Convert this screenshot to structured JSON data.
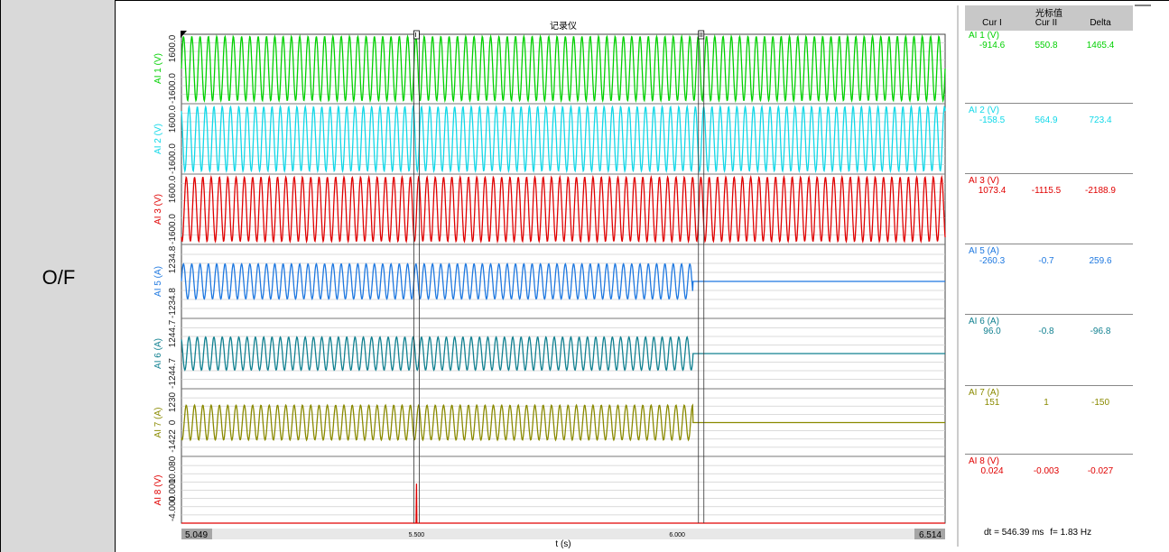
{
  "side_label": "O/F",
  "chart_data": {
    "type": "line",
    "title": "记录仪",
    "xlabel": "t (s)",
    "xlim": [
      5.049,
      6.514
    ],
    "x_ticks": [
      "5.500",
      "6.000"
    ],
    "x_start_label": "5.049",
    "x_end_label": "6.514",
    "cursor_1_t": 5.5,
    "cursor_2_t": 6.046,
    "grid": true,
    "series": [
      {
        "name": "AI 1 (V)",
        "color": "#00d000",
        "yticks": [
          "1600.0",
          "-1600.0"
        ],
        "ylim": [
          -1600,
          1600
        ],
        "amplitude_before": 1500,
        "amplitude_after": 1500,
        "cut_t": null,
        "spike_t": null
      },
      {
        "name": "AI 2 (V)",
        "color": "#10d8e8",
        "yticks": [
          "1600.0",
          "-1600.0"
        ],
        "ylim": [
          -1600,
          1600
        ],
        "amplitude_before": 1500,
        "amplitude_after": 1500,
        "cut_t": null,
        "spike_t": null
      },
      {
        "name": "AI 3 (V)",
        "color": "#e00000",
        "yticks": [
          "1600.0",
          "-1600.0"
        ],
        "ylim": [
          -1600,
          1600
        ],
        "amplitude_before": 1500,
        "amplitude_after": 1500,
        "cut_t": null,
        "spike_t": null
      },
      {
        "name": "AI 5 (A)",
        "color": "#1e78e0",
        "yticks": [
          "1234.8",
          "-1234.8"
        ],
        "ylim": [
          -1234.8,
          1234.8
        ],
        "amplitude_before": 600,
        "amplitude_after": 0,
        "cut_t": 6.03,
        "spike_t": null
      },
      {
        "name": "AI 6 (A)",
        "color": "#108090",
        "yticks": [
          "1244.7",
          "-1244.7"
        ],
        "ylim": [
          -1244.7,
          1244.7
        ],
        "amplitude_before": 600,
        "amplitude_after": 0,
        "cut_t": 6.03,
        "spike_t": null
      },
      {
        "name": "AI 7 (A)",
        "color": "#8a8a00",
        "yticks": [
          "1230",
          "0",
          "-1422"
        ],
        "ylim": [
          -1422,
          1230
        ],
        "amplitude_before": 700,
        "amplitude_after": 0,
        "cut_t": 6.03,
        "spike_t": null
      },
      {
        "name": "AI 8 (V)",
        "color": "#e00000",
        "yticks": [
          "10.080",
          "0.000",
          "-4.000"
        ],
        "ylim": [
          -4.0,
          10.08
        ],
        "amplitude_before": 0,
        "amplitude_after": 0,
        "baseline": -4.0,
        "cut_t": null,
        "spike_t": 5.5
      }
    ]
  },
  "cursor_panel": {
    "title": "光标值",
    "columns": [
      "Cur I",
      "Cur II",
      "Delta"
    ],
    "rows": [
      {
        "name": "AI 1 (V)",
        "color": "#00d000",
        "cur1": "-914.6",
        "cur2": "550.8",
        "delta": "1465.4"
      },
      {
        "name": "AI 2 (V)",
        "color": "#10d8e8",
        "cur1": "-158.5",
        "cur2": "564.9",
        "delta": "723.4"
      },
      {
        "name": "AI 3 (V)",
        "color": "#e00000",
        "cur1": "1073.4",
        "cur2": "-1115.5",
        "delta": "-2188.9"
      },
      {
        "name": "AI 5 (A)",
        "color": "#1e78e0",
        "cur1": "-260.3",
        "cur2": "-0.7",
        "delta": "259.6"
      },
      {
        "name": "AI 6 (A)",
        "color": "#108090",
        "cur1": "96.0",
        "cur2": "-0.8",
        "delta": "-96.8"
      },
      {
        "name": "AI 7 (A)",
        "color": "#8a8a00",
        "cur1": "151",
        "cur2": "1",
        "delta": "-150"
      },
      {
        "name": "AI 8 (V)",
        "color": "#e00000",
        "cur1": "0.024",
        "cur2": "-0.003",
        "delta": "-0.027"
      }
    ],
    "dt_text": "dt = 546.39 ms",
    "f_text": "f= 1.83 Hz"
  }
}
